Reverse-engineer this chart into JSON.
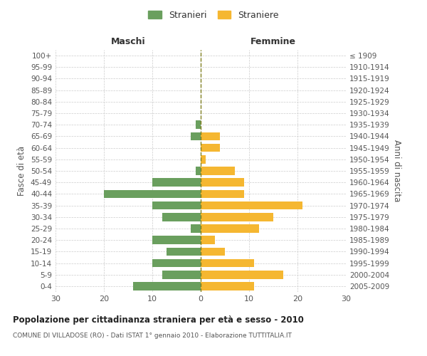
{
  "age_groups": [
    "0-4",
    "5-9",
    "10-14",
    "15-19",
    "20-24",
    "25-29",
    "30-34",
    "35-39",
    "40-44",
    "45-49",
    "50-54",
    "55-59",
    "60-64",
    "65-69",
    "70-74",
    "75-79",
    "80-84",
    "85-89",
    "90-94",
    "95-99",
    "100+"
  ],
  "birth_years": [
    "2005-2009",
    "2000-2004",
    "1995-1999",
    "1990-1994",
    "1985-1989",
    "1980-1984",
    "1975-1979",
    "1970-1974",
    "1965-1969",
    "1960-1964",
    "1955-1959",
    "1950-1954",
    "1945-1949",
    "1940-1944",
    "1935-1939",
    "1930-1934",
    "1925-1929",
    "1920-1924",
    "1915-1919",
    "1910-1914",
    "≤ 1909"
  ],
  "males": [
    14,
    8,
    10,
    7,
    10,
    2,
    8,
    10,
    20,
    10,
    1,
    0,
    0,
    2,
    1,
    0,
    0,
    0,
    0,
    0,
    0
  ],
  "females": [
    11,
    17,
    11,
    5,
    3,
    12,
    15,
    21,
    9,
    9,
    7,
    1,
    4,
    4,
    0,
    0,
    0,
    0,
    0,
    0,
    0
  ],
  "male_color": "#6a9f5e",
  "female_color": "#f5b731",
  "center_line_color": "#808020",
  "grid_color": "#cccccc",
  "title": "Popolazione per cittadinanza straniera per età e sesso - 2010",
  "subtitle": "COMUNE DI VILLADOSE (RO) - Dati ISTAT 1° gennaio 2010 - Elaborazione TUTTITALIA.IT",
  "xlabel_left": "Maschi",
  "xlabel_right": "Femmine",
  "ylabel_left": "Fasce di età",
  "ylabel_right": "Anni di nascita",
  "legend_male": "Stranieri",
  "legend_female": "Straniere",
  "xlim": 30,
  "background_color": "#ffffff"
}
